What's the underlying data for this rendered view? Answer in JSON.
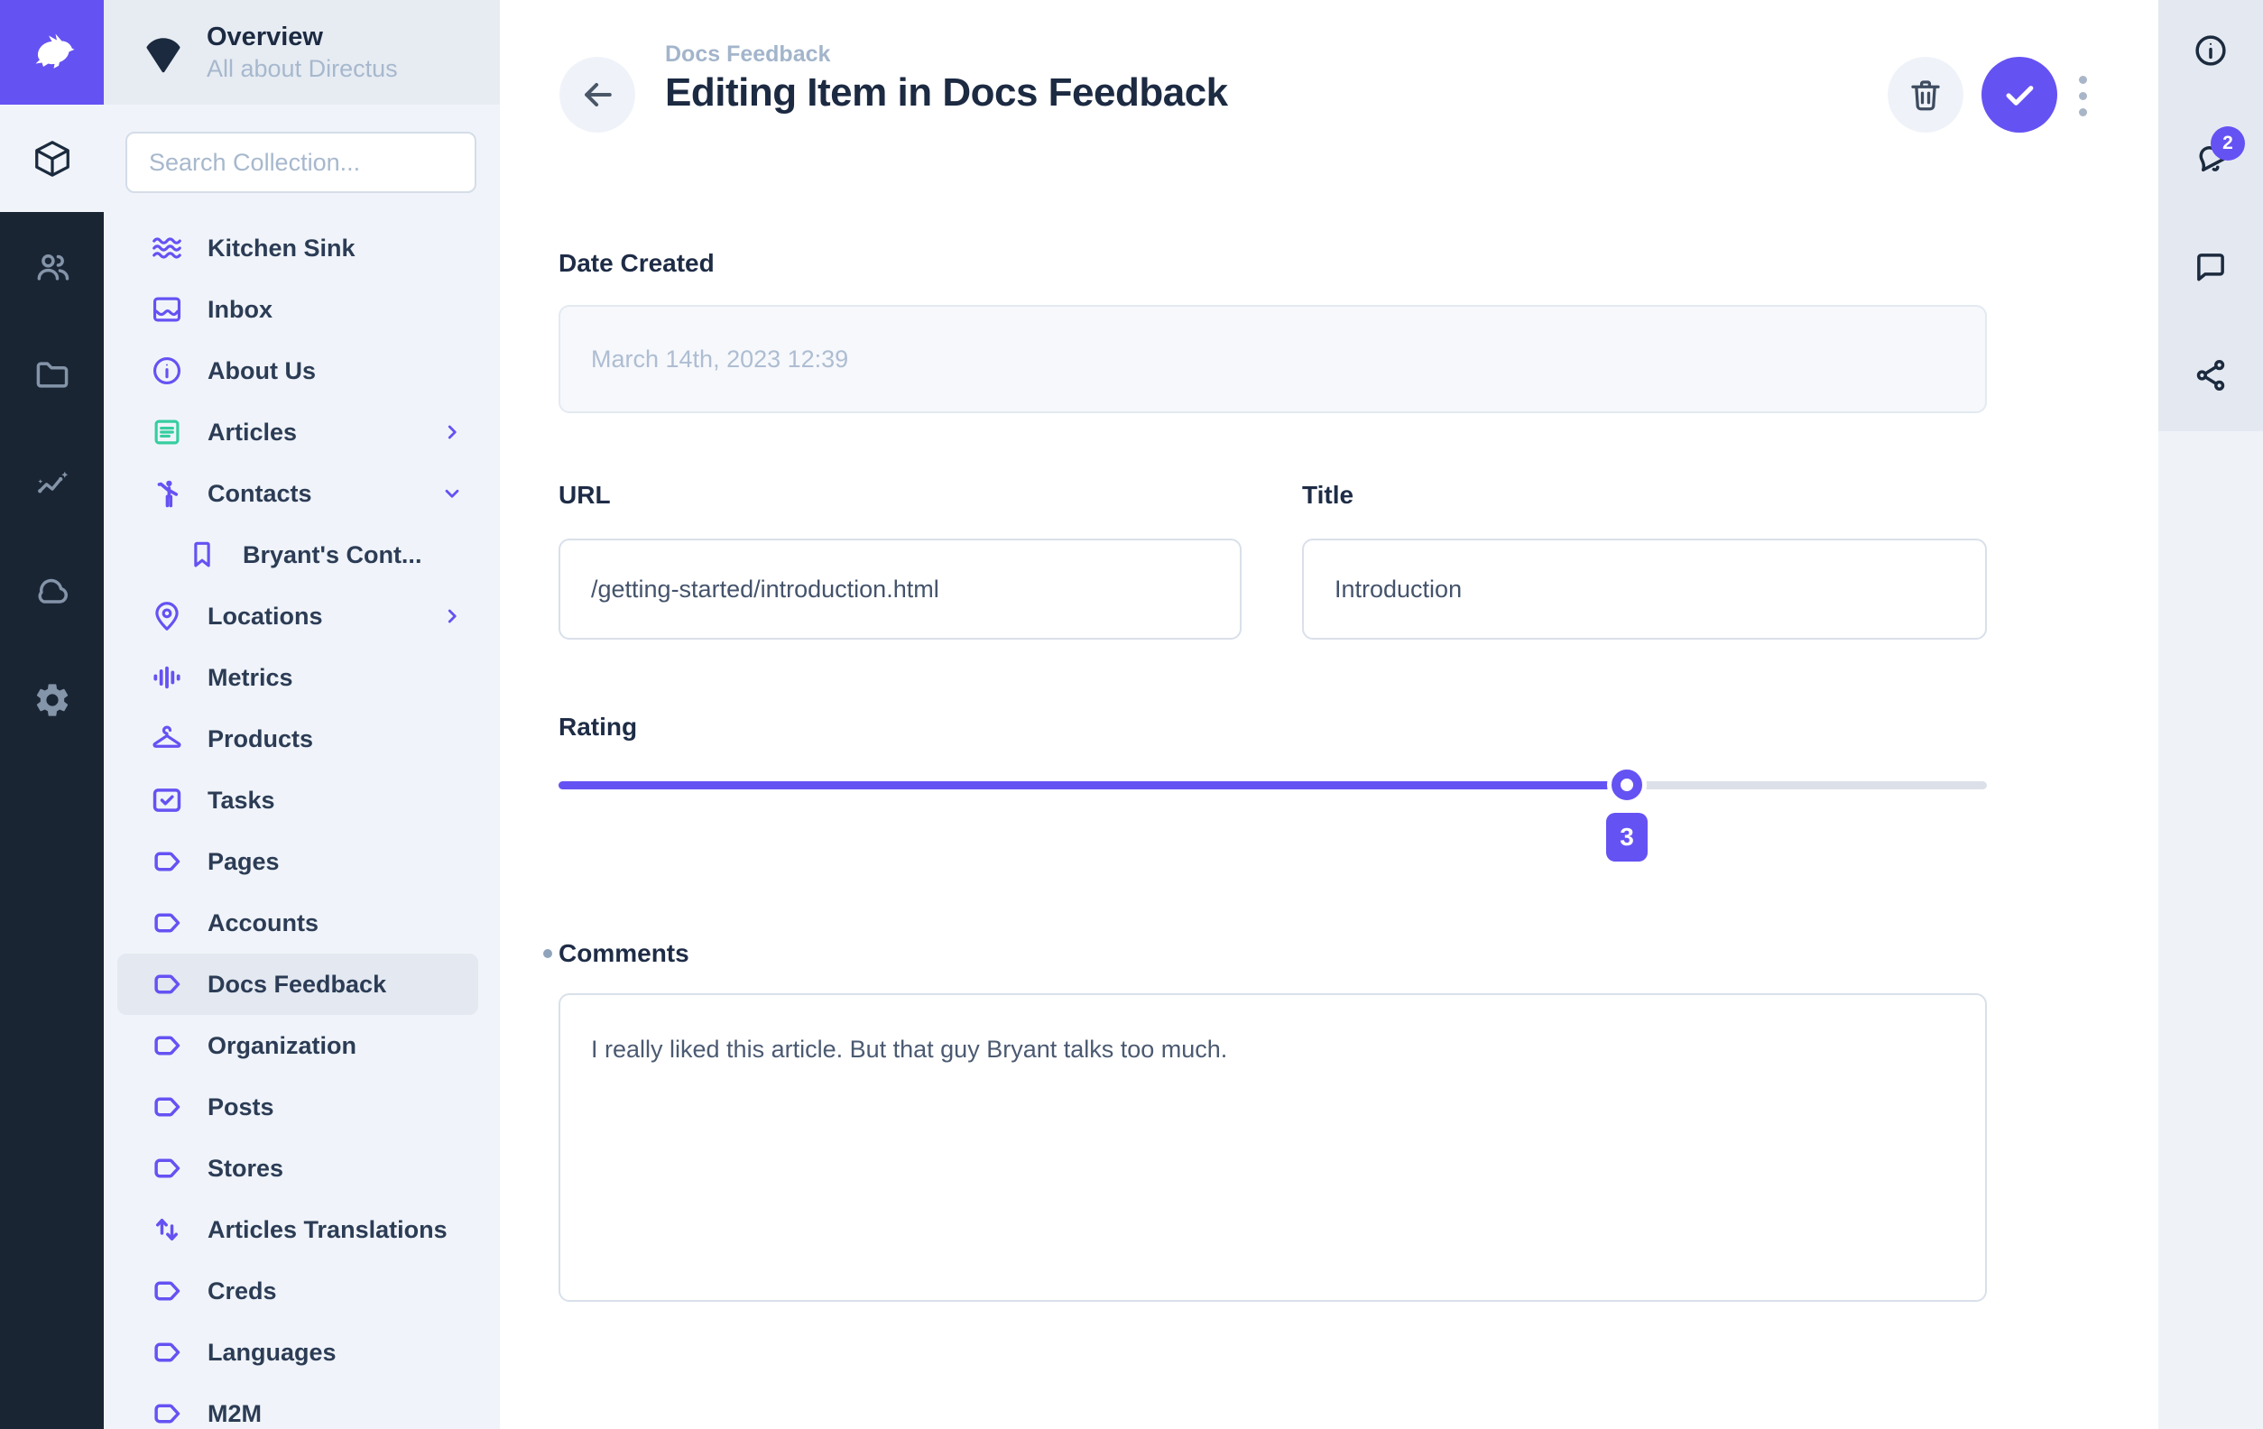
{
  "app": {
    "name": "Directus",
    "logo_icon": "rabbit-logo-icon"
  },
  "project": {
    "icon": "fan-icon",
    "title": "Overview",
    "subtitle": "All about Directus"
  },
  "module_bar": {
    "active": {
      "icon": "box-icon",
      "name": "content-module"
    },
    "items": [
      {
        "icon": "users-icon",
        "name": "users-module"
      },
      {
        "icon": "folder-icon",
        "name": "files-module"
      },
      {
        "icon": "insights-icon",
        "name": "insights-module"
      },
      {
        "icon": "cloud-icon",
        "name": "cloud-module"
      },
      {
        "icon": "settings-gear-icon",
        "name": "settings-module"
      }
    ]
  },
  "search": {
    "placeholder": "Search Collection..."
  },
  "sidebar": {
    "items": [
      {
        "label": "Kitchen Sink",
        "icon": "waves-icon"
      },
      {
        "label": "Inbox",
        "icon": "inbox-icon"
      },
      {
        "label": "About Us",
        "icon": "info-icon"
      },
      {
        "label": "Articles",
        "icon": "article-icon",
        "icon_color": "green",
        "chevron": "right"
      },
      {
        "label": "Contacts",
        "icon": "person-wave-icon",
        "chevron": "down"
      },
      {
        "label": "Bryant's Cont...",
        "icon": "bookmark-icon",
        "indent": true
      },
      {
        "label": "Locations",
        "icon": "map-pin-icon",
        "chevron": "right"
      },
      {
        "label": "Metrics",
        "icon": "waveform-icon"
      },
      {
        "label": "Products",
        "icon": "hanger-icon"
      },
      {
        "label": "Tasks",
        "icon": "task-check-icon"
      },
      {
        "label": "Pages",
        "icon": "label-icon"
      },
      {
        "label": "Accounts",
        "icon": "label-icon"
      },
      {
        "label": "Docs Feedback",
        "icon": "label-icon",
        "active": true
      },
      {
        "label": "Organization",
        "icon": "label-icon"
      },
      {
        "label": "Posts",
        "icon": "label-icon"
      },
      {
        "label": "Stores",
        "icon": "label-icon"
      },
      {
        "label": "Articles Translations",
        "icon": "translate-arrows-icon"
      },
      {
        "label": "Creds",
        "icon": "label-icon"
      },
      {
        "label": "Languages",
        "icon": "label-icon"
      },
      {
        "label": "M2M",
        "icon": "label-icon"
      }
    ]
  },
  "header": {
    "breadcrumb": "Docs Feedback",
    "title": "Editing Item in Docs Feedback",
    "actions": {
      "delete_icon": "trash-icon",
      "save_icon": "check-icon",
      "more_icon": "dots-icon"
    }
  },
  "form": {
    "date_created": {
      "label": "Date Created",
      "value": "March 14th, 2023 12:39",
      "disabled": true
    },
    "url": {
      "label": "URL",
      "value": "/getting-started/introduction.html"
    },
    "title": {
      "label": "Title",
      "value": "Introduction"
    },
    "rating": {
      "label": "Rating",
      "value": "3",
      "percent": 74.8
    },
    "comments": {
      "label": "Comments",
      "value": "I really liked this article. But that guy Bryant talks too much.",
      "edited": true
    }
  },
  "right_sidebar": {
    "items": [
      {
        "icon": "info-circle-icon",
        "name": "item-info"
      },
      {
        "icon": "bell-icon",
        "name": "notifications",
        "badge": "2"
      },
      {
        "icon": "comment-icon",
        "name": "comments-panel"
      },
      {
        "icon": "share-icon",
        "name": "shares-panel"
      }
    ]
  },
  "colors": {
    "accent": "#6552F3",
    "module_bar": "#1A2534",
    "sidebar_bg": "#F0F4FA",
    "articles_green": "#36CDA0",
    "badge": "#6552F3"
  }
}
